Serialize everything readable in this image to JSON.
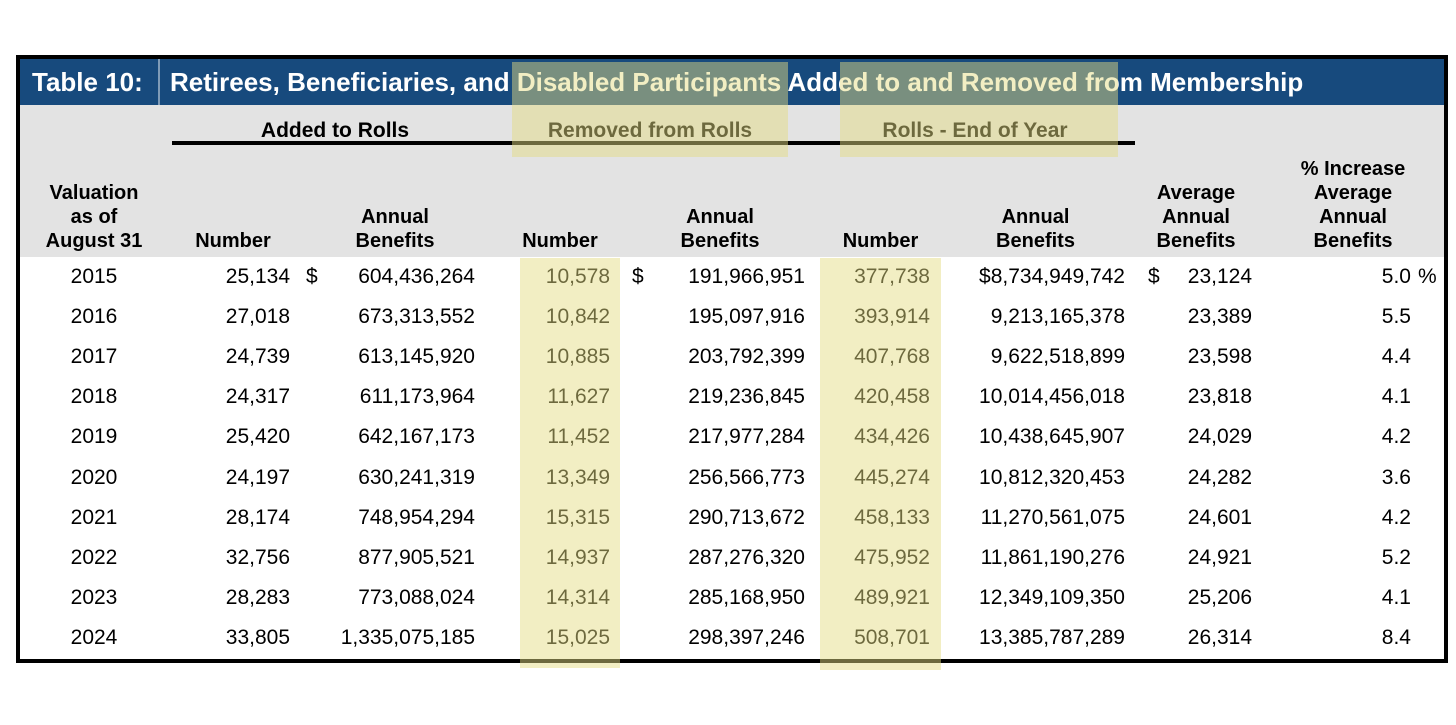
{
  "title": {
    "label": "Table 10:",
    "text": "Retirees, Beneficiaries, and Disabled Participants Added to and Removed from Membership"
  },
  "group_headers": {
    "added": "Added to Rolls",
    "removed": "Removed from Rolls",
    "rolls_eoy": "Rolls - End of Year"
  },
  "column_headers": {
    "valuation_lines": [
      "Valuation",
      "as of",
      "August 31"
    ],
    "number": "Number",
    "annual_benefits_lines": [
      "Annual",
      "Benefits"
    ],
    "average_lines": [
      "Average",
      "Annual",
      "Benefits"
    ],
    "pct_increase_lines": [
      "% Increase",
      "Average",
      "Annual",
      "Benefits"
    ]
  },
  "symbols": {
    "dollar": "$",
    "percent": "%"
  },
  "colors": {
    "title_bar": "#174A7D",
    "header_background": "#E3E3E3",
    "highlight": "#EDE6B9"
  },
  "rows": [
    {
      "year": "2015",
      "added_number": "25,134",
      "added_benefits": "604,436,264",
      "removed_number": "10,578",
      "removed_benefits": "191,966,951",
      "rolls_number": "377,738",
      "rolls_benefits": "$8,734,949,742",
      "avg_benefits": "23,124",
      "pct_increase": "5.0"
    },
    {
      "year": "2016",
      "added_number": "27,018",
      "added_benefits": "673,313,552",
      "removed_number": "10,842",
      "removed_benefits": "195,097,916",
      "rolls_number": "393,914",
      "rolls_benefits": "9,213,165,378",
      "avg_benefits": "23,389",
      "pct_increase": "5.5"
    },
    {
      "year": "2017",
      "added_number": "24,739",
      "added_benefits": "613,145,920",
      "removed_number": "10,885",
      "removed_benefits": "203,792,399",
      "rolls_number": "407,768",
      "rolls_benefits": "9,622,518,899",
      "avg_benefits": "23,598",
      "pct_increase": "4.4"
    },
    {
      "year": "2018",
      "added_number": "24,317",
      "added_benefits": "611,173,964",
      "removed_number": "11,627",
      "removed_benefits": "219,236,845",
      "rolls_number": "420,458",
      "rolls_benefits": "10,014,456,018",
      "avg_benefits": "23,818",
      "pct_increase": "4.1"
    },
    {
      "year": "2019",
      "added_number": "25,420",
      "added_benefits": "642,167,173",
      "removed_number": "11,452",
      "removed_benefits": "217,977,284",
      "rolls_number": "434,426",
      "rolls_benefits": "10,438,645,907",
      "avg_benefits": "24,029",
      "pct_increase": "4.2"
    },
    {
      "year": "2020",
      "added_number": "24,197",
      "added_benefits": "630,241,319",
      "removed_number": "13,349",
      "removed_benefits": "256,566,773",
      "rolls_number": "445,274",
      "rolls_benefits": "10,812,320,453",
      "avg_benefits": "24,282",
      "pct_increase": "3.6"
    },
    {
      "year": "2021",
      "added_number": "28,174",
      "added_benefits": "748,954,294",
      "removed_number": "15,315",
      "removed_benefits": "290,713,672",
      "rolls_number": "458,133",
      "rolls_benefits": "11,270,561,075",
      "avg_benefits": "24,601",
      "pct_increase": "4.2"
    },
    {
      "year": "2022",
      "added_number": "32,756",
      "added_benefits": "877,905,521",
      "removed_number": "14,937",
      "removed_benefits": "287,276,320",
      "rolls_number": "475,952",
      "rolls_benefits": "11,861,190,276",
      "avg_benefits": "24,921",
      "pct_increase": "5.2"
    },
    {
      "year": "2023",
      "added_number": "28,283",
      "added_benefits": "773,088,024",
      "removed_number": "14,314",
      "removed_benefits": "285,168,950",
      "rolls_number": "489,921",
      "rolls_benefits": "12,349,109,350",
      "avg_benefits": "25,206",
      "pct_increase": "4.1"
    },
    {
      "year": "2024",
      "added_number": "33,805",
      "added_benefits": "1,335,075,185",
      "removed_number": "15,025",
      "removed_benefits": "298,397,246",
      "rolls_number": "508,701",
      "rolls_benefits": "13,385,787,289",
      "avg_benefits": "26,314",
      "pct_increase": "8.4"
    }
  ]
}
